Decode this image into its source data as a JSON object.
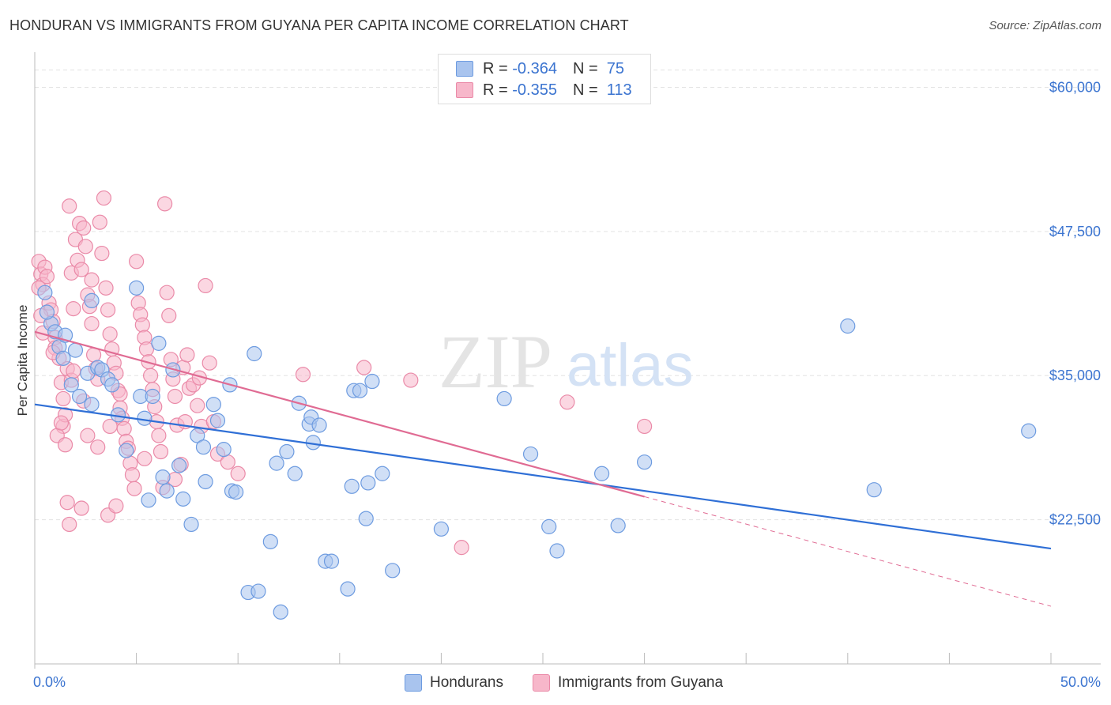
{
  "title": "HONDURAN VS IMMIGRANTS FROM GUYANA PER CAPITA INCOME CORRELATION CHART",
  "source": "Source: ZipAtlas.com",
  "watermark": {
    "zip": "ZIP",
    "atlas": "atlas"
  },
  "legend": {
    "series1": {
      "r_label": "R =",
      "r_value": "-0.364",
      "n_label": "N =",
      "n_value": "75"
    },
    "series2": {
      "r_label": "R =",
      "r_value": "-0.355",
      "n_label": "N =",
      "n_value": "113"
    }
  },
  "colors": {
    "hondurans_fill": "#a9c4ee",
    "hondurans_stroke": "#6d9be0",
    "hondurans_line": "#2f6fd6",
    "guyana_fill": "#f7b7ca",
    "guyana_stroke": "#ea8aa8",
    "guyana_line": "#e06b93",
    "axis_label": "#3b74d0",
    "grid": "#e3e3e3"
  },
  "chart_data": {
    "type": "scatter",
    "title": "HONDURAN VS IMMIGRANTS FROM GUYANA PER CAPITA INCOME CORRELATION CHART",
    "xlabel": "",
    "ylabel": "Per Capita Income",
    "xlim": [
      0,
      50
    ],
    "ylim": [
      10000,
      62500
    ],
    "x_tick_labels": [
      "0.0%",
      "50.0%"
    ],
    "y_ticks": [
      22500,
      35000,
      47500,
      60000
    ],
    "y_tick_labels": [
      "$22,500",
      "$35,000",
      "$47,500",
      "$60,000"
    ],
    "series": [
      {
        "name": "Hondurans",
        "r": -0.364,
        "n": 75,
        "trend": {
          "x0": 0,
          "y0": 32500,
          "x1": 50,
          "y1": 20000
        },
        "points": [
          [
            0.8,
            39500
          ],
          [
            0.6,
            40500
          ],
          [
            1.0,
            38800
          ],
          [
            1.2,
            37500
          ],
          [
            1.4,
            36500
          ],
          [
            1.5,
            38500
          ],
          [
            2.0,
            37200
          ],
          [
            1.8,
            34200
          ],
          [
            2.2,
            33200
          ],
          [
            2.6,
            35200
          ],
          [
            2.8,
            32500
          ],
          [
            3.1,
            35700
          ],
          [
            3.3,
            35500
          ],
          [
            3.6,
            34700
          ],
          [
            3.8,
            34200
          ],
          [
            4.1,
            31600
          ],
          [
            4.5,
            28500
          ],
          [
            5.0,
            42600
          ],
          [
            5.2,
            33200
          ],
          [
            5.4,
            31300
          ],
          [
            5.6,
            24200
          ],
          [
            5.8,
            33200
          ],
          [
            6.1,
            37800
          ],
          [
            6.3,
            26200
          ],
          [
            6.5,
            25000
          ],
          [
            6.8,
            35500
          ],
          [
            7.1,
            27200
          ],
          [
            7.3,
            24300
          ],
          [
            7.7,
            22100
          ],
          [
            8.0,
            29800
          ],
          [
            8.3,
            28800
          ],
          [
            8.4,
            25800
          ],
          [
            8.8,
            32500
          ],
          [
            9.0,
            31100
          ],
          [
            9.3,
            28600
          ],
          [
            9.6,
            34200
          ],
          [
            9.7,
            25000
          ],
          [
            9.9,
            24900
          ],
          [
            10.5,
            16200
          ],
          [
            10.8,
            36900
          ],
          [
            11.0,
            16300
          ],
          [
            11.6,
            20600
          ],
          [
            11.9,
            27400
          ],
          [
            12.1,
            14500
          ],
          [
            12.4,
            28400
          ],
          [
            12.8,
            26500
          ],
          [
            13.0,
            32600
          ],
          [
            13.5,
            30800
          ],
          [
            13.6,
            31400
          ],
          [
            13.7,
            29200
          ],
          [
            14.0,
            30700
          ],
          [
            14.3,
            18900
          ],
          [
            14.6,
            18900
          ],
          [
            15.4,
            16500
          ],
          [
            15.6,
            25400
          ],
          [
            15.7,
            33700
          ],
          [
            16.0,
            33700
          ],
          [
            16.3,
            22600
          ],
          [
            16.4,
            25700
          ],
          [
            16.6,
            34500
          ],
          [
            17.1,
            26500
          ],
          [
            17.6,
            18100
          ],
          [
            20.0,
            21700
          ],
          [
            23.1,
            33000
          ],
          [
            24.4,
            28200
          ],
          [
            25.3,
            21900
          ],
          [
            25.7,
            19800
          ],
          [
            27.9,
            26500
          ],
          [
            28.7,
            22000
          ],
          [
            30.0,
            27500
          ],
          [
            40.0,
            39300
          ],
          [
            41.3,
            25100
          ],
          [
            48.9,
            30200
          ],
          [
            0.5,
            42200
          ],
          [
            2.8,
            41500
          ]
        ]
      },
      {
        "name": "Immigrants from Guyana",
        "r": -0.355,
        "n": 113,
        "trend": {
          "x0": 0,
          "y0": 38800,
          "x1": 30,
          "y1": 24500
        },
        "trend_extension": {
          "x0": 30,
          "y0": 24500,
          "x1": 50,
          "y1": 15000
        },
        "points": [
          [
            0.2,
            44900
          ],
          [
            0.3,
            43800
          ],
          [
            0.4,
            42900
          ],
          [
            0.5,
            44400
          ],
          [
            0.6,
            43600
          ],
          [
            0.7,
            41300
          ],
          [
            0.8,
            40700
          ],
          [
            0.9,
            39700
          ],
          [
            1.0,
            38300
          ],
          [
            1.0,
            37400
          ],
          [
            1.2,
            36500
          ],
          [
            1.3,
            34400
          ],
          [
            1.4,
            33000
          ],
          [
            1.4,
            30600
          ],
          [
            1.5,
            31600
          ],
          [
            1.6,
            35600
          ],
          [
            1.7,
            49700
          ],
          [
            1.8,
            43900
          ],
          [
            1.9,
            40800
          ],
          [
            2.0,
            46800
          ],
          [
            2.1,
            45000
          ],
          [
            2.2,
            48200
          ],
          [
            2.3,
            44200
          ],
          [
            2.4,
            47800
          ],
          [
            2.5,
            46200
          ],
          [
            2.6,
            42000
          ],
          [
            2.7,
            41000
          ],
          [
            2.8,
            43300
          ],
          [
            2.8,
            39500
          ],
          [
            2.9,
            36800
          ],
          [
            3.0,
            35600
          ],
          [
            3.1,
            34700
          ],
          [
            3.2,
            48300
          ],
          [
            3.3,
            45600
          ],
          [
            3.4,
            50400
          ],
          [
            3.5,
            42600
          ],
          [
            3.6,
            40700
          ],
          [
            3.7,
            38600
          ],
          [
            3.8,
            37300
          ],
          [
            3.9,
            36100
          ],
          [
            4.0,
            35200
          ],
          [
            4.1,
            33700
          ],
          [
            4.2,
            32200
          ],
          [
            4.3,
            31300
          ],
          [
            4.4,
            30400
          ],
          [
            4.5,
            29300
          ],
          [
            4.6,
            28700
          ],
          [
            4.7,
            27400
          ],
          [
            4.8,
            26400
          ],
          [
            4.9,
            25200
          ],
          [
            5.0,
            44900
          ],
          [
            5.1,
            41300
          ],
          [
            5.2,
            40300
          ],
          [
            5.3,
            39400
          ],
          [
            5.4,
            38300
          ],
          [
            5.5,
            37300
          ],
          [
            5.6,
            36200
          ],
          [
            5.7,
            35000
          ],
          [
            5.8,
            33800
          ],
          [
            5.9,
            32300
          ],
          [
            6.0,
            31000
          ],
          [
            6.1,
            29800
          ],
          [
            6.2,
            28400
          ],
          [
            6.3,
            25300
          ],
          [
            6.4,
            49900
          ],
          [
            6.5,
            42200
          ],
          [
            6.6,
            40200
          ],
          [
            6.7,
            36400
          ],
          [
            6.8,
            34700
          ],
          [
            6.9,
            33200
          ],
          [
            7.0,
            30700
          ],
          [
            7.2,
            27300
          ],
          [
            7.3,
            35700
          ],
          [
            7.5,
            36800
          ],
          [
            7.6,
            33900
          ],
          [
            7.8,
            34200
          ],
          [
            8.0,
            32400
          ],
          [
            8.2,
            30600
          ],
          [
            8.4,
            42800
          ],
          [
            8.6,
            36100
          ],
          [
            8.8,
            31000
          ],
          [
            9.0,
            28200
          ],
          [
            9.5,
            27500
          ],
          [
            10.0,
            26500
          ],
          [
            13.2,
            35100
          ],
          [
            16.2,
            35700
          ],
          [
            18.5,
            34600
          ],
          [
            21.0,
            20100
          ],
          [
            26.2,
            32700
          ],
          [
            30.0,
            30600
          ],
          [
            0.2,
            42600
          ],
          [
            0.3,
            40200
          ],
          [
            0.4,
            38700
          ],
          [
            1.1,
            29800
          ],
          [
            1.3,
            30900
          ],
          [
            1.5,
            29000
          ],
          [
            1.6,
            24000
          ],
          [
            1.7,
            22100
          ],
          [
            1.8,
            34600
          ],
          [
            2.3,
            23500
          ],
          [
            2.6,
            29800
          ],
          [
            3.1,
            28800
          ],
          [
            3.6,
            22900
          ],
          [
            4.0,
            23700
          ],
          [
            0.9,
            37000
          ],
          [
            1.9,
            35400
          ],
          [
            2.4,
            32800
          ],
          [
            3.7,
            30600
          ],
          [
            4.2,
            33400
          ],
          [
            5.4,
            27800
          ],
          [
            6.9,
            26000
          ],
          [
            7.4,
            31000
          ],
          [
            8.1,
            34800
          ]
        ]
      }
    ]
  },
  "bottom_legend": {
    "hondurans": "Hondurans",
    "guyana": "Immigrants from Guyana"
  }
}
